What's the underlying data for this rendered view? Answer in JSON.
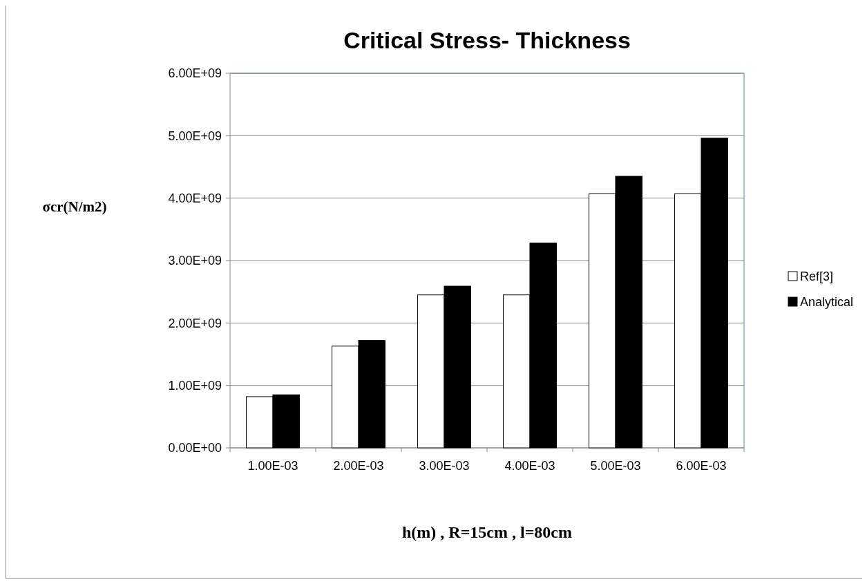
{
  "chart_data": {
    "type": "bar",
    "title": "Critical Stress- Thickness",
    "xlabel": "h(m) , R=15cm , l=80cm",
    "ylabel": "σcr(N/m2)",
    "categories": [
      "1.00E-03",
      "2.00E-03",
      "3.00E-03",
      "4.00E-03",
      "5.00E-03",
      "6.00E-03"
    ],
    "series": [
      {
        "name": "Ref[3]",
        "color": "#ffffff",
        "values": [
          820000000.0,
          1630000000.0,
          2450000000.0,
          2450000000.0,
          4070000000.0,
          4070000000.0
        ]
      },
      {
        "name": "Analytical",
        "color": "#000000",
        "values": [
          850000000.0,
          1720000000.0,
          2590000000.0,
          3280000000.0,
          4350000000.0,
          4960000000.0
        ]
      }
    ],
    "ylim": [
      0,
      6000000000.0
    ],
    "yticks": [
      {
        "value": 0,
        "label": "0.00E+00"
      },
      {
        "value": 1000000000.0,
        "label": "1.00E+09"
      },
      {
        "value": 2000000000.0,
        "label": "2.00E+09"
      },
      {
        "value": 3000000000.0,
        "label": "3.00E+09"
      },
      {
        "value": 4000000000.0,
        "label": "4.00E+09"
      },
      {
        "value": 5000000000.0,
        "label": "5.00E+09"
      },
      {
        "value": 6000000000.0,
        "label": "6.00E+09"
      }
    ],
    "grid": "y",
    "legend": "right"
  }
}
